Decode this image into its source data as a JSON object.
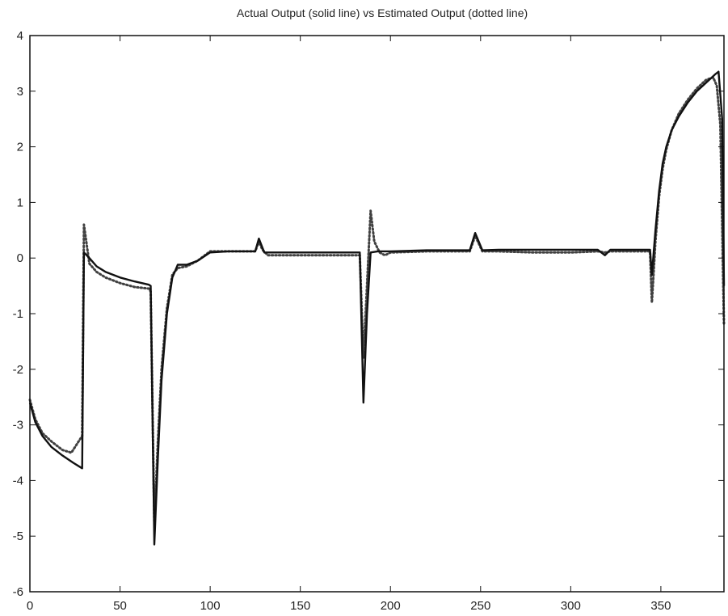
{
  "chart_data": {
    "type": "line",
    "title": "Actual Output (solid line) vs Estimated Output (dotted line)",
    "xlabel": "",
    "ylabel": "",
    "xlim": [
      0,
      385
    ],
    "ylim": [
      -6,
      4
    ],
    "xticks": [
      0,
      50,
      100,
      150,
      200,
      250,
      300,
      350
    ],
    "yticks": [
      -6,
      -5,
      -4,
      -3,
      -2,
      -1,
      0,
      1,
      2,
      3,
      4
    ],
    "grid": false,
    "legend": "none",
    "series": [
      {
        "style": "solid",
        "color": "#111111",
        "points": [
          [
            0,
            -2.6
          ],
          [
            3,
            -2.95
          ],
          [
            7,
            -3.2
          ],
          [
            12,
            -3.4
          ],
          [
            18,
            -3.55
          ],
          [
            24,
            -3.68
          ],
          [
            29,
            -3.78
          ],
          [
            30,
            0.1
          ],
          [
            33,
            0.0
          ],
          [
            37,
            -0.15
          ],
          [
            42,
            -0.25
          ],
          [
            50,
            -0.35
          ],
          [
            58,
            -0.42
          ],
          [
            66,
            -0.48
          ],
          [
            67,
            -0.5
          ],
          [
            69,
            -5.15
          ],
          [
            71,
            -3.6
          ],
          [
            73,
            -2.2
          ],
          [
            76,
            -1.0
          ],
          [
            79,
            -0.35
          ],
          [
            82,
            -0.12
          ],
          [
            87,
            -0.12
          ],
          [
            93,
            -0.05
          ],
          [
            100,
            0.1
          ],
          [
            110,
            0.12
          ],
          [
            120,
            0.12
          ],
          [
            125,
            0.12
          ],
          [
            127,
            0.35
          ],
          [
            130,
            0.1
          ],
          [
            140,
            0.1
          ],
          [
            160,
            0.1
          ],
          [
            180,
            0.1
          ],
          [
            183,
            0.1
          ],
          [
            185,
            -2.6
          ],
          [
            187,
            -1.0
          ],
          [
            189,
            0.1
          ],
          [
            193,
            0.12
          ],
          [
            200,
            0.12
          ],
          [
            220,
            0.14
          ],
          [
            240,
            0.14
          ],
          [
            244,
            0.14
          ],
          [
            247,
            0.45
          ],
          [
            251,
            0.14
          ],
          [
            260,
            0.15
          ],
          [
            280,
            0.15
          ],
          [
            300,
            0.15
          ],
          [
            315,
            0.15
          ],
          [
            319,
            0.05
          ],
          [
            322,
            0.15
          ],
          [
            330,
            0.15
          ],
          [
            344,
            0.15
          ],
          [
            345,
            -0.3
          ],
          [
            347,
            0.5
          ],
          [
            349,
            1.2
          ],
          [
            351,
            1.7
          ],
          [
            353,
            2.0
          ],
          [
            356,
            2.3
          ],
          [
            360,
            2.55
          ],
          [
            365,
            2.8
          ],
          [
            370,
            3.0
          ],
          [
            375,
            3.15
          ],
          [
            380,
            3.3
          ],
          [
            382,
            3.35
          ],
          [
            384,
            2.5
          ],
          [
            385,
            -0.5
          ]
        ]
      },
      {
        "style": "dotted",
        "color": "#111111",
        "points": [
          [
            0,
            -2.55
          ],
          [
            3,
            -2.9
          ],
          [
            7,
            -3.15
          ],
          [
            12,
            -3.3
          ],
          [
            18,
            -3.45
          ],
          [
            23,
            -3.5
          ],
          [
            27,
            -3.3
          ],
          [
            29,
            -3.2
          ],
          [
            30,
            0.6
          ],
          [
            33,
            -0.1
          ],
          [
            37,
            -0.25
          ],
          [
            42,
            -0.35
          ],
          [
            50,
            -0.45
          ],
          [
            58,
            -0.52
          ],
          [
            66,
            -0.55
          ],
          [
            67,
            -0.6
          ],
          [
            69,
            -4.8
          ],
          [
            71,
            -3.3
          ],
          [
            73,
            -2.0
          ],
          [
            76,
            -0.9
          ],
          [
            79,
            -0.3
          ],
          [
            82,
            -0.18
          ],
          [
            87,
            -0.15
          ],
          [
            93,
            -0.05
          ],
          [
            100,
            0.12
          ],
          [
            110,
            0.12
          ],
          [
            120,
            0.12
          ],
          [
            125,
            0.12
          ],
          [
            127,
            0.3
          ],
          [
            129,
            0.15
          ],
          [
            132,
            0.05
          ],
          [
            140,
            0.05
          ],
          [
            160,
            0.05
          ],
          [
            180,
            0.05
          ],
          [
            183,
            0.05
          ],
          [
            185,
            -1.8
          ],
          [
            187,
            -0.5
          ],
          [
            189,
            0.85
          ],
          [
            191,
            0.3
          ],
          [
            194,
            0.1
          ],
          [
            197,
            0.05
          ],
          [
            200,
            0.1
          ],
          [
            220,
            0.12
          ],
          [
            240,
            0.12
          ],
          [
            244,
            0.12
          ],
          [
            247,
            0.4
          ],
          [
            251,
            0.12
          ],
          [
            260,
            0.12
          ],
          [
            280,
            0.1
          ],
          [
            300,
            0.1
          ],
          [
            315,
            0.12
          ],
          [
            319,
            0.1
          ],
          [
            322,
            0.12
          ],
          [
            330,
            0.12
          ],
          [
            344,
            0.12
          ],
          [
            345,
            -0.8
          ],
          [
            347,
            0.3
          ],
          [
            349,
            1.1
          ],
          [
            351,
            1.6
          ],
          [
            353,
            1.95
          ],
          [
            356,
            2.3
          ],
          [
            360,
            2.6
          ],
          [
            365,
            2.85
          ],
          [
            370,
            3.05
          ],
          [
            375,
            3.2
          ],
          [
            379,
            3.25
          ],
          [
            381,
            3.1
          ],
          [
            383,
            2.4
          ],
          [
            385,
            -1.2
          ]
        ]
      }
    ]
  }
}
